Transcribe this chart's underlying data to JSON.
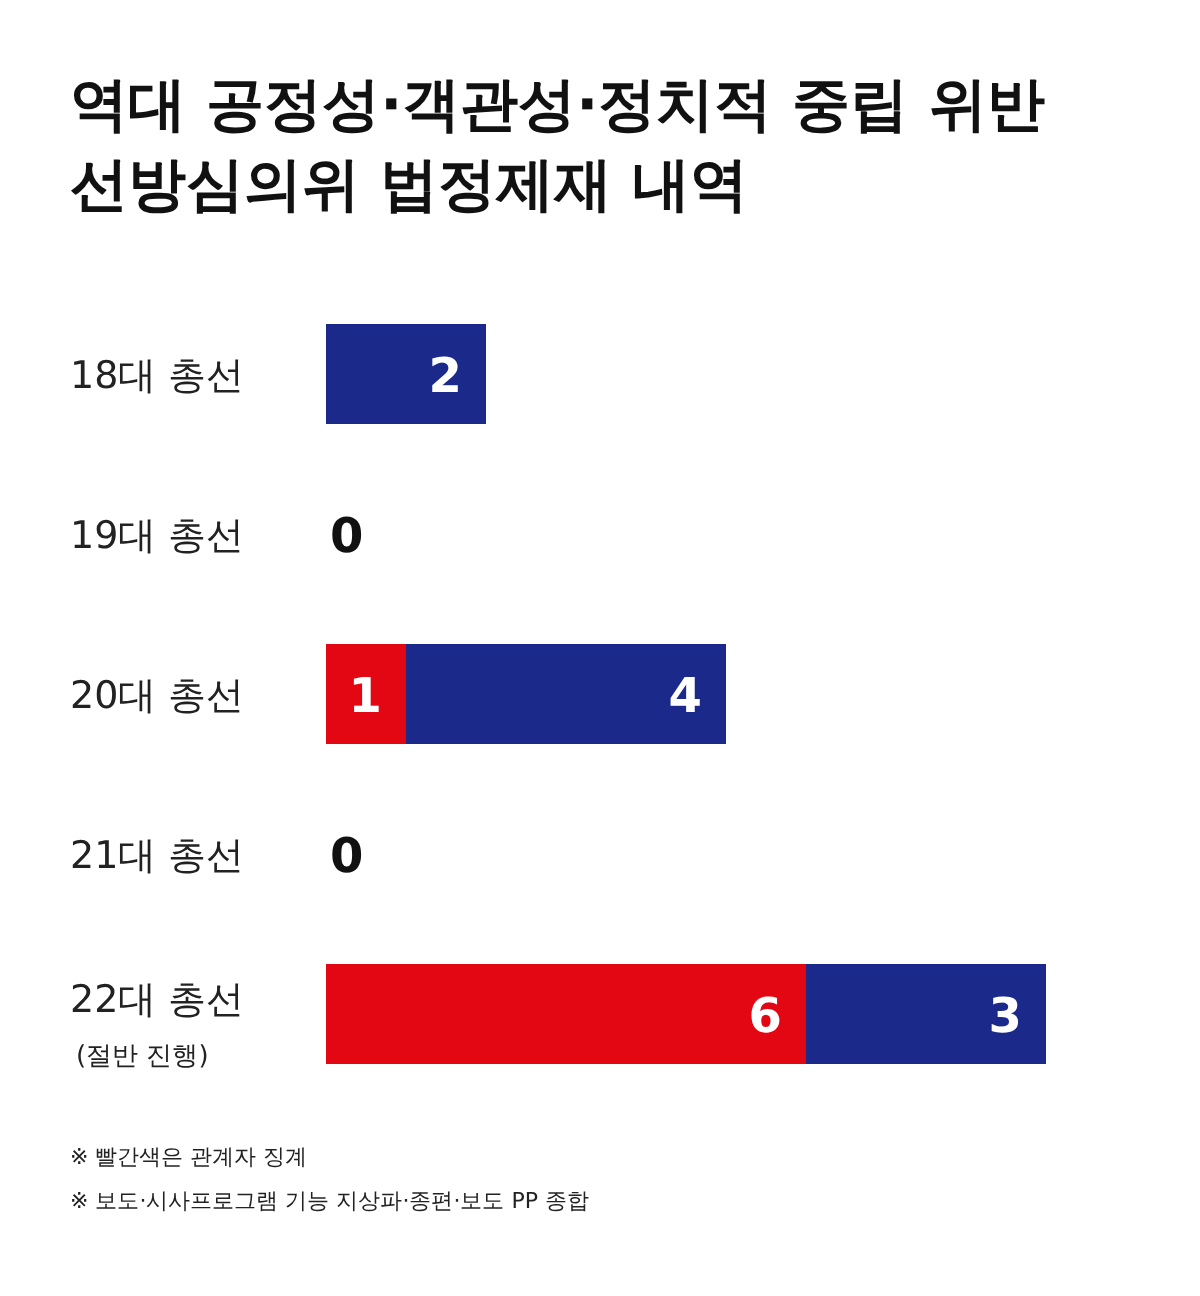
{
  "chart_data": {
    "type": "bar",
    "orientation": "horizontal",
    "stacked": true,
    "title": "역대 공정성·객관성·정치적 중립 위반\n선방심의위 법정제재 내역",
    "categories": [
      "18대 총선",
      "19대 총선",
      "20대 총선",
      "21대 총선",
      "22대 총선\n(절반 진행)"
    ],
    "series": [
      {
        "color": "#e30613",
        "values": [
          0,
          0,
          1,
          0,
          6
        ],
        "value_labels": [
          null,
          null,
          "1",
          null,
          "6"
        ]
      },
      {
        "color": "#1b2a8a",
        "values": [
          2,
          0,
          4,
          0,
          3
        ],
        "value_labels": [
          "2",
          "0",
          "4",
          "0",
          "3"
        ]
      }
    ],
    "annotations": [
      "※ 빨간색은 관계자 징계",
      "※ 보도·시사프로그램 기능 지상파·종편·보도 PP 종합"
    ],
    "data_labels": false
  }
}
